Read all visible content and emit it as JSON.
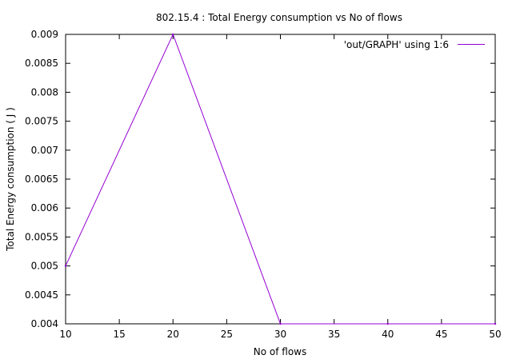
{
  "chart_data": {
    "type": "line",
    "title": "802.15.4 : Total Energy consumption vs No of flows",
    "xlabel": "No of flows",
    "ylabel": "Total Energy consumption ( J )",
    "xlim": [
      10,
      50
    ],
    "ylim": [
      0.004,
      0.009
    ],
    "x_ticks": [
      "10",
      "15",
      "20",
      "25",
      "30",
      "35",
      "40",
      "45",
      "50"
    ],
    "y_ticks": [
      "0.004",
      "0.0045",
      "0.005",
      "0.0055",
      "0.006",
      "0.0065",
      "0.007",
      "0.0075",
      "0.008",
      "0.0085",
      "0.009"
    ],
    "grid": false,
    "legend_position": "top-right",
    "series": [
      {
        "name": "'out/GRAPH' using 1:6",
        "color": "#9400d3",
        "x": [
          10,
          20,
          30,
          40,
          50
        ],
        "y": [
          0.005,
          0.009,
          0.004,
          0.004,
          0.004
        ]
      }
    ]
  }
}
